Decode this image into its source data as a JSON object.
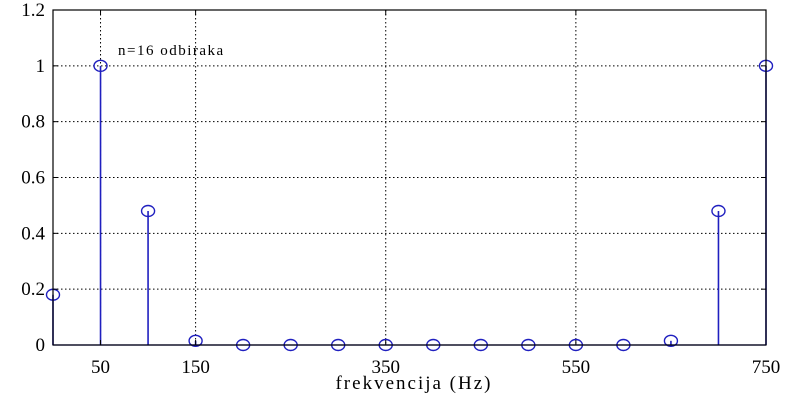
{
  "chart_data": {
    "type": "stem",
    "title": "",
    "annotation": "n=16 odbiraka",
    "xlabel": "frekvencija (Hz)",
    "ylabel": "",
    "xlim": [
      0,
      750
    ],
    "ylim": [
      0,
      1.2
    ],
    "x_ticks": [
      50,
      150,
      350,
      550,
      750
    ],
    "y_ticks": [
      0,
      0.2,
      0.4,
      0.6,
      0.8,
      1,
      1.2
    ],
    "y_tick_labels": [
      "0",
      "0.2",
      "0.4",
      "0.6",
      "0.8",
      "1",
      "1.2"
    ],
    "grid": true,
    "x": [
      0,
      50,
      100,
      150,
      200,
      250,
      300,
      350,
      400,
      450,
      500,
      550,
      600,
      650,
      700,
      750
    ],
    "values": [
      0.18,
      1.0,
      0.48,
      0.015,
      0.0,
      0.0,
      0.0,
      0.0,
      0.0,
      0.0,
      0.0,
      0.0,
      0.0,
      0.015,
      0.48,
      1.0
    ],
    "color": "#1f1fbf"
  }
}
